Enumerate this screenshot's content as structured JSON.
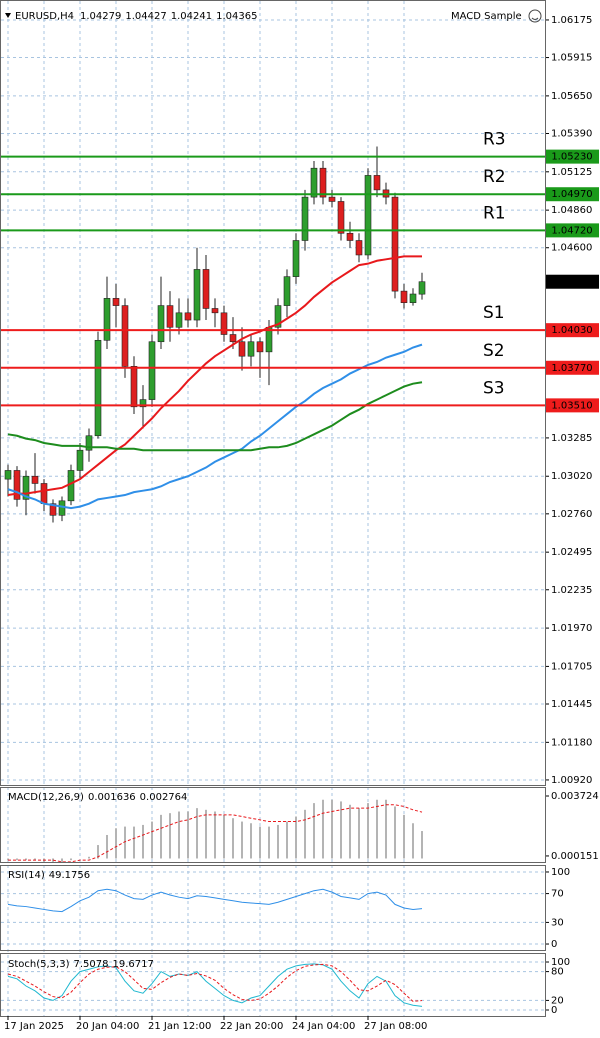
{
  "chart_data": [
    {
      "type": "candlestick",
      "title": "EURUSD,H4",
      "indicator_label": "MACD Sample",
      "categories": [
        "17 Jan 2025",
        null,
        null,
        null,
        null,
        null,
        null,
        null,
        "20 Jan 04:00",
        null,
        null,
        null,
        null,
        null,
        null,
        null,
        "21 Jan 12:00",
        null,
        null,
        null,
        null,
        null,
        null,
        null,
        "22 Jan 20:00",
        null,
        null,
        null,
        null,
        null,
        null,
        null,
        "24 Jan 04:00",
        null,
        null,
        null,
        null,
        null,
        null,
        null,
        "27 Jan 08:00",
        null,
        null,
        null,
        null,
        null,
        null
      ],
      "open": [
        1.03,
        1.0306,
        1.0286,
        1.0302,
        1.0297,
        1.0283,
        1.0275,
        1.0285,
        1.0306,
        1.032,
        1.033,
        1.0396,
        1.0425,
        1.042,
        1.0378,
        1.035,
        1.0355,
        1.0395,
        1.042,
        1.0405,
        1.0415,
        1.041,
        1.0445,
        1.0418,
        1.0415,
        1.04,
        1.0395,
        1.0385,
        1.0395,
        1.0388,
        1.0405,
        1.042,
        1.044,
        1.0465,
        1.0495,
        1.0515,
        1.0495,
        1.0492,
        1.047,
        1.0465,
        1.0455,
        1.051,
        1.05,
        1.0495,
        1.043,
        1.0422,
        1.04279
      ],
      "high": [
        1.031,
        1.0309,
        1.0306,
        1.0318,
        1.03,
        1.0286,
        1.0288,
        1.031,
        1.0325,
        1.0335,
        1.0402,
        1.044,
        1.0435,
        1.0425,
        1.0385,
        1.0365,
        1.04,
        1.044,
        1.043,
        1.0425,
        1.0425,
        1.046,
        1.0455,
        1.0425,
        1.042,
        1.0412,
        1.0405,
        1.04,
        1.0398,
        1.041,
        1.0425,
        1.0445,
        1.047,
        1.05,
        1.052,
        1.052,
        1.05,
        1.0495,
        1.0478,
        1.047,
        1.0515,
        1.053,
        1.0505,
        1.0498,
        1.0435,
        1.0432,
        1.04427
      ],
      "low": [
        1.0288,
        1.0281,
        1.0275,
        1.029,
        1.0278,
        1.027,
        1.0271,
        1.0282,
        1.03,
        1.0312,
        1.0328,
        1.039,
        1.0405,
        1.037,
        1.0345,
        1.0335,
        1.035,
        1.039,
        1.0395,
        1.04,
        1.0405,
        1.0405,
        1.041,
        1.0405,
        1.0395,
        1.039,
        1.0375,
        1.0378,
        1.037,
        1.0365,
        1.04,
        1.0412,
        1.0435,
        1.0458,
        1.049,
        1.049,
        1.0488,
        1.0465,
        1.046,
        1.045,
        1.0452,
        1.0495,
        1.049,
        1.0425,
        1.0418,
        1.042,
        1.04241
      ],
      "close": [
        1.0306,
        1.0286,
        1.0302,
        1.0297,
        1.0283,
        1.0275,
        1.0285,
        1.0306,
        1.032,
        1.033,
        1.0396,
        1.0425,
        1.042,
        1.0378,
        1.035,
        1.0355,
        1.0395,
        1.042,
        1.0405,
        1.0415,
        1.041,
        1.0445,
        1.0418,
        1.0415,
        1.04,
        1.0395,
        1.0385,
        1.0395,
        1.0388,
        1.0405,
        1.042,
        1.044,
        1.0465,
        1.0495,
        1.0515,
        1.0495,
        1.0492,
        1.047,
        1.0465,
        1.0455,
        1.051,
        1.05,
        1.0495,
        1.043,
        1.0422,
        1.0428,
        1.04365
      ],
      "up_color": "#2e9e2e",
      "down_color": "#dd1f1f",
      "moving_averages": [
        {
          "color": "#e8191c",
          "values": [
            1.0289,
            1.029,
            1.029,
            1.0291,
            1.0292,
            1.0293,
            1.0294,
            1.0297,
            1.03,
            1.0305,
            1.031,
            1.0315,
            1.032,
            1.0324,
            1.033,
            1.0336,
            1.0342,
            1.0349,
            1.0355,
            1.0361,
            1.0368,
            1.0374,
            1.038,
            1.0385,
            1.0389,
            1.0393,
            1.0397,
            1.04,
            1.0402,
            1.0405,
            1.0407,
            1.0411,
            1.0415,
            1.042,
            1.0426,
            1.0431,
            1.0436,
            1.044,
            1.0444,
            1.0448,
            1.0449,
            1.0451,
            1.0452,
            1.0453,
            1.0454,
            1.0454,
            1.0454
          ]
        },
        {
          "color": "#2f8fe8",
          "values": [
            1.0293,
            1.0291,
            1.0288,
            1.0286,
            1.0283,
            1.0282,
            1.0281,
            1.028,
            1.0281,
            1.0283,
            1.0286,
            1.0287,
            1.0288,
            1.0289,
            1.0291,
            1.0292,
            1.0293,
            1.0295,
            1.0298,
            1.03,
            1.0302,
            1.0305,
            1.0308,
            1.0312,
            1.0315,
            1.0318,
            1.0321,
            1.0326,
            1.033,
            1.0335,
            1.034,
            1.0345,
            1.035,
            1.0354,
            1.0359,
            1.0363,
            1.0366,
            1.0369,
            1.0373,
            1.0376,
            1.0379,
            1.0381,
            1.0384,
            1.0386,
            1.0388,
            1.0391,
            1.0393
          ]
        },
        {
          "color": "#1d8c1d",
          "values": [
            1.0331,
            1.033,
            1.0328,
            1.0327,
            1.0325,
            1.0324,
            1.0323,
            1.0323,
            1.0323,
            1.0322,
            1.0322,
            1.0322,
            1.0321,
            1.0321,
            1.0321,
            1.032,
            1.032,
            1.032,
            1.032,
            1.032,
            1.032,
            1.032,
            1.032,
            1.032,
            1.032,
            1.032,
            1.032,
            1.032,
            1.0321,
            1.0322,
            1.0322,
            1.0323,
            1.0325,
            1.0328,
            1.0331,
            1.0334,
            1.0337,
            1.0341,
            1.0345,
            1.0348,
            1.0352,
            1.0355,
            1.0358,
            1.0361,
            1.0364,
            1.0366,
            1.0367
          ]
        }
      ],
      "levels": [
        {
          "name": "R3",
          "value": 1.0523,
          "value_label": "1.05230",
          "color": "#1a9a1a"
        },
        {
          "name": "R2",
          "value": 1.0497,
          "value_label": "1.04970",
          "color": "#1a9a1a"
        },
        {
          "name": "R1",
          "value": 1.0472,
          "value_label": "1.04720",
          "color": "#1a9a1a"
        },
        {
          "name": "S1",
          "value": 1.0403,
          "value_label": "1.04030",
          "color": "#ee1c1c"
        },
        {
          "name": "S2",
          "value": 1.0377,
          "value_label": "1.03770",
          "color": "#ee1c1c"
        },
        {
          "name": "S3",
          "value": 1.0351,
          "value_label": "1.03510",
          "color": "#ee1c1c"
        }
      ],
      "ylim": [
        1.00885,
        1.06313
      ],
      "yticks": [
        1.06175,
        1.05915,
        {
          "value": 1.0565,
          "label": "1.05650"
        },
        {
          "value": 1.0539,
          "label": "1.05390"
        },
        1.05125,
        {
          "value": 1.0486,
          "label": "1.04860"
        },
        {
          "value": 1.046,
          "label": "1.04600"
        },
        1.03285,
        {
          "value": 1.0302,
          "label": "1.03020"
        },
        {
          "value": 1.0276,
          "label": "1.02760"
        },
        1.02495,
        1.02235,
        {
          "value": 1.0197,
          "label": "1.01970"
        },
        1.01705,
        1.01445,
        {
          "value": 1.0118,
          "label": "1.01180"
        },
        {
          "value": 1.0092,
          "label": "1.00920"
        }
      ],
      "grid": true
    },
    {
      "type": "macd",
      "title": "MACD(12,26,9)",
      "hist_color": "#b4b4b4",
      "signal_color": "#e8191c",
      "values": [
        -0.0001,
        -0.0001,
        -0.0001,
        -0.0001,
        -0.0002,
        -0.0002,
        -0.0002,
        -0.0001,
        0.0,
        0.0001,
        0.0008,
        0.0014,
        0.0018,
        0.0019,
        0.0019,
        0.002,
        0.0022,
        0.0026,
        0.0027,
        0.0028,
        0.0028,
        0.003,
        0.0029,
        0.0028,
        0.0026,
        0.0024,
        0.0022,
        0.0021,
        0.0019,
        0.0019,
        0.002,
        0.0022,
        0.0025,
        0.0029,
        0.0033,
        0.0035,
        0.0035,
        0.0034,
        0.0032,
        0.003,
        0.0033,
        0.0035,
        0.0035,
        0.0031,
        0.0026,
        0.0021,
        0.001636
      ],
      "signal": [
        -0.0001,
        -0.0001,
        -0.0001,
        -0.0001,
        -0.0001,
        -0.0001,
        -0.0002,
        -0.0002,
        -0.0001,
        -0.0001,
        0.0001,
        0.0004,
        0.0007,
        0.001,
        0.0012,
        0.0014,
        0.0016,
        0.0018,
        0.002,
        0.0022,
        0.0023,
        0.0025,
        0.0026,
        0.0026,
        0.0026,
        0.0026,
        0.0025,
        0.0024,
        0.0023,
        0.0022,
        0.0022,
        0.0022,
        0.0022,
        0.0023,
        0.0025,
        0.0027,
        0.0028,
        0.0029,
        0.003,
        0.003,
        0.003,
        0.0031,
        0.0032,
        0.0032,
        0.0031,
        0.0029,
        0.002764
      ],
      "ylim": [
        -0.00021,
        0.0042
      ],
      "yticks": [
        0.003724,
        0.000151
      ],
      "grid": false
    },
    {
      "type": "line",
      "title": "RSI(14)",
      "series": [
        {
          "color": "#2f8fe8",
          "dash": false,
          "values": [
            55,
            53,
            52,
            50,
            48,
            46,
            45,
            52,
            60,
            65,
            74,
            76,
            74,
            68,
            63,
            62,
            68,
            72,
            68,
            65,
            63,
            67,
            66,
            64,
            62,
            60,
            58,
            57,
            56,
            55,
            58,
            62,
            66,
            70,
            74,
            76,
            72,
            66,
            64,
            62,
            70,
            72,
            68,
            55,
            50,
            48,
            49.1756
          ]
        }
      ],
      "ylim": [
        -8.3,
        108.3
      ],
      "yticks": [
        100,
        70,
        30,
        0
      ],
      "grid": true
    },
    {
      "type": "line",
      "title": "Stoch(5,3,3)",
      "series": [
        {
          "color": "#20b8d0",
          "dash": false,
          "values": [
            70,
            65,
            50,
            40,
            25,
            20,
            30,
            60,
            80,
            85,
            90,
            92,
            88,
            60,
            40,
            35,
            55,
            80,
            70,
            75,
            72,
            80,
            60,
            45,
            30,
            20,
            15,
            25,
            30,
            50,
            70,
            85,
            92,
            95,
            96,
            94,
            85,
            60,
            40,
            25,
            55,
            70,
            60,
            30,
            15,
            10,
            7.5078
          ]
        },
        {
          "color": "#e8191c",
          "dash": true,
          "values": [
            75,
            70,
            60,
            50,
            38,
            28,
            25,
            37,
            57,
            75,
            85,
            89,
            90,
            80,
            63,
            45,
            43,
            57,
            68,
            75,
            72,
            76,
            71,
            62,
            45,
            32,
            22,
            20,
            23,
            35,
            50,
            68,
            82,
            91,
            94,
            95,
            92,
            80,
            62,
            42,
            40,
            50,
            62,
            53,
            35,
            18,
            19.6717
          ]
        }
      ],
      "ylim": [
        -12.5,
        116.7
      ],
      "yticks": [
        100,
        80,
        20,
        0
      ],
      "grid": true
    }
  ]
}
